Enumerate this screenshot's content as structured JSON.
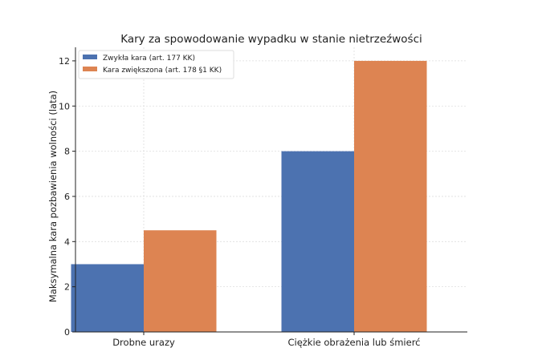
{
  "chart_data": {
    "type": "bar",
    "title": "Kary za spowodowanie wypadku w stanie nietrzeźwości",
    "xlabel": "",
    "ylabel": "Maksymalna kara pozbawienia wolności (lata)",
    "categories": [
      "Drobne urazy",
      "Ciężkie obrażenia lub śmierć"
    ],
    "series": [
      {
        "name": "Zwykła kara (art. 177 KK)",
        "values": [
          3,
          8
        ],
        "color": "#4c72b0"
      },
      {
        "name": "Kara zwiększona (art. 178 §1 KK)",
        "values": [
          4.5,
          12
        ],
        "color": "#dd8452"
      }
    ],
    "ylim": [
      0,
      12.6
    ],
    "yticks": [
      0,
      2,
      4,
      6,
      8,
      10,
      12
    ],
    "grid": true,
    "legend": "top-left"
  }
}
